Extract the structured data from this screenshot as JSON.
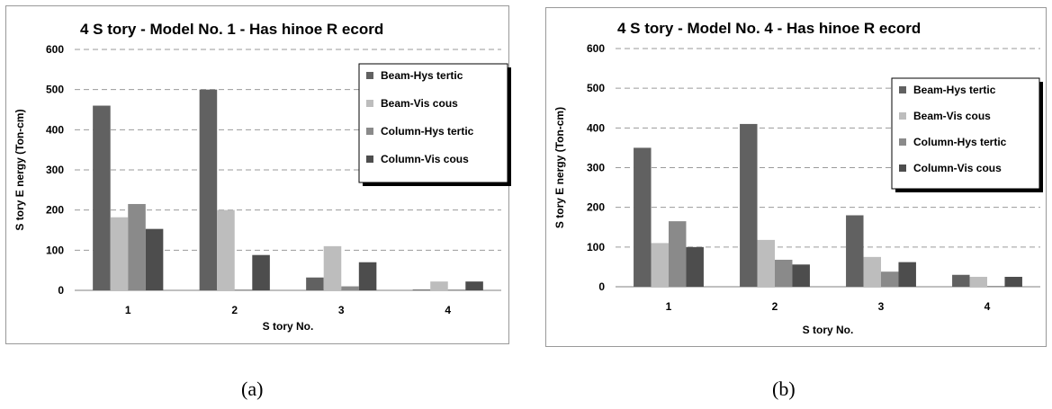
{
  "chart_data": [
    {
      "type": "bar",
      "title": "4 S tory - Model No. 1 - Has hinoe R ecord",
      "xlabel": "S tory No.",
      "ylabel": "S tory E nergy (Ton-cm)",
      "categories": [
        "1",
        "2",
        "3",
        "4"
      ],
      "ylim": [
        0,
        600
      ],
      "yticks": [
        0,
        100,
        200,
        300,
        400,
        500,
        600
      ],
      "grid": true,
      "legend_position": "top-right",
      "series": [
        {
          "name": "Beam-Hys tertic",
          "color": "#616161",
          "values": [
            460,
            500,
            32,
            2
          ]
        },
        {
          "name": "Beam-Vis cous",
          "color": "#bdbdbd",
          "values": [
            182,
            200,
            110,
            22
          ]
        },
        {
          "name": "Column-Hys tertic",
          "color": "#8a8a8a",
          "values": [
            215,
            2,
            10,
            2
          ]
        },
        {
          "name": "Column-Vis cous",
          "color": "#4d4d4d",
          "values": [
            153,
            88,
            70,
            22
          ]
        }
      ]
    },
    {
      "type": "bar",
      "title": "4 S tory - Model No. 4 - Has hinoe R ecord",
      "xlabel": "S tory No.",
      "ylabel": "S tory E nergy (Ton-cm)",
      "categories": [
        "1",
        "2",
        "3",
        "4"
      ],
      "ylim": [
        0,
        600
      ],
      "yticks": [
        0,
        100,
        200,
        300,
        400,
        500,
        600
      ],
      "grid": true,
      "legend_position": "top-right",
      "series": [
        {
          "name": "Beam-Hys tertic",
          "color": "#616161",
          "values": [
            350,
            410,
            180,
            30
          ]
        },
        {
          "name": "Beam-Vis cous",
          "color": "#bdbdbd",
          "values": [
            110,
            118,
            75,
            25
          ]
        },
        {
          "name": "Column-Hys tertic",
          "color": "#8a8a8a",
          "values": [
            165,
            68,
            38,
            2
          ]
        },
        {
          "name": "Column-Vis cous",
          "color": "#4d4d4d",
          "values": [
            100,
            56,
            62,
            25
          ]
        }
      ]
    }
  ],
  "captions": [
    "(a)",
    "(b)"
  ]
}
